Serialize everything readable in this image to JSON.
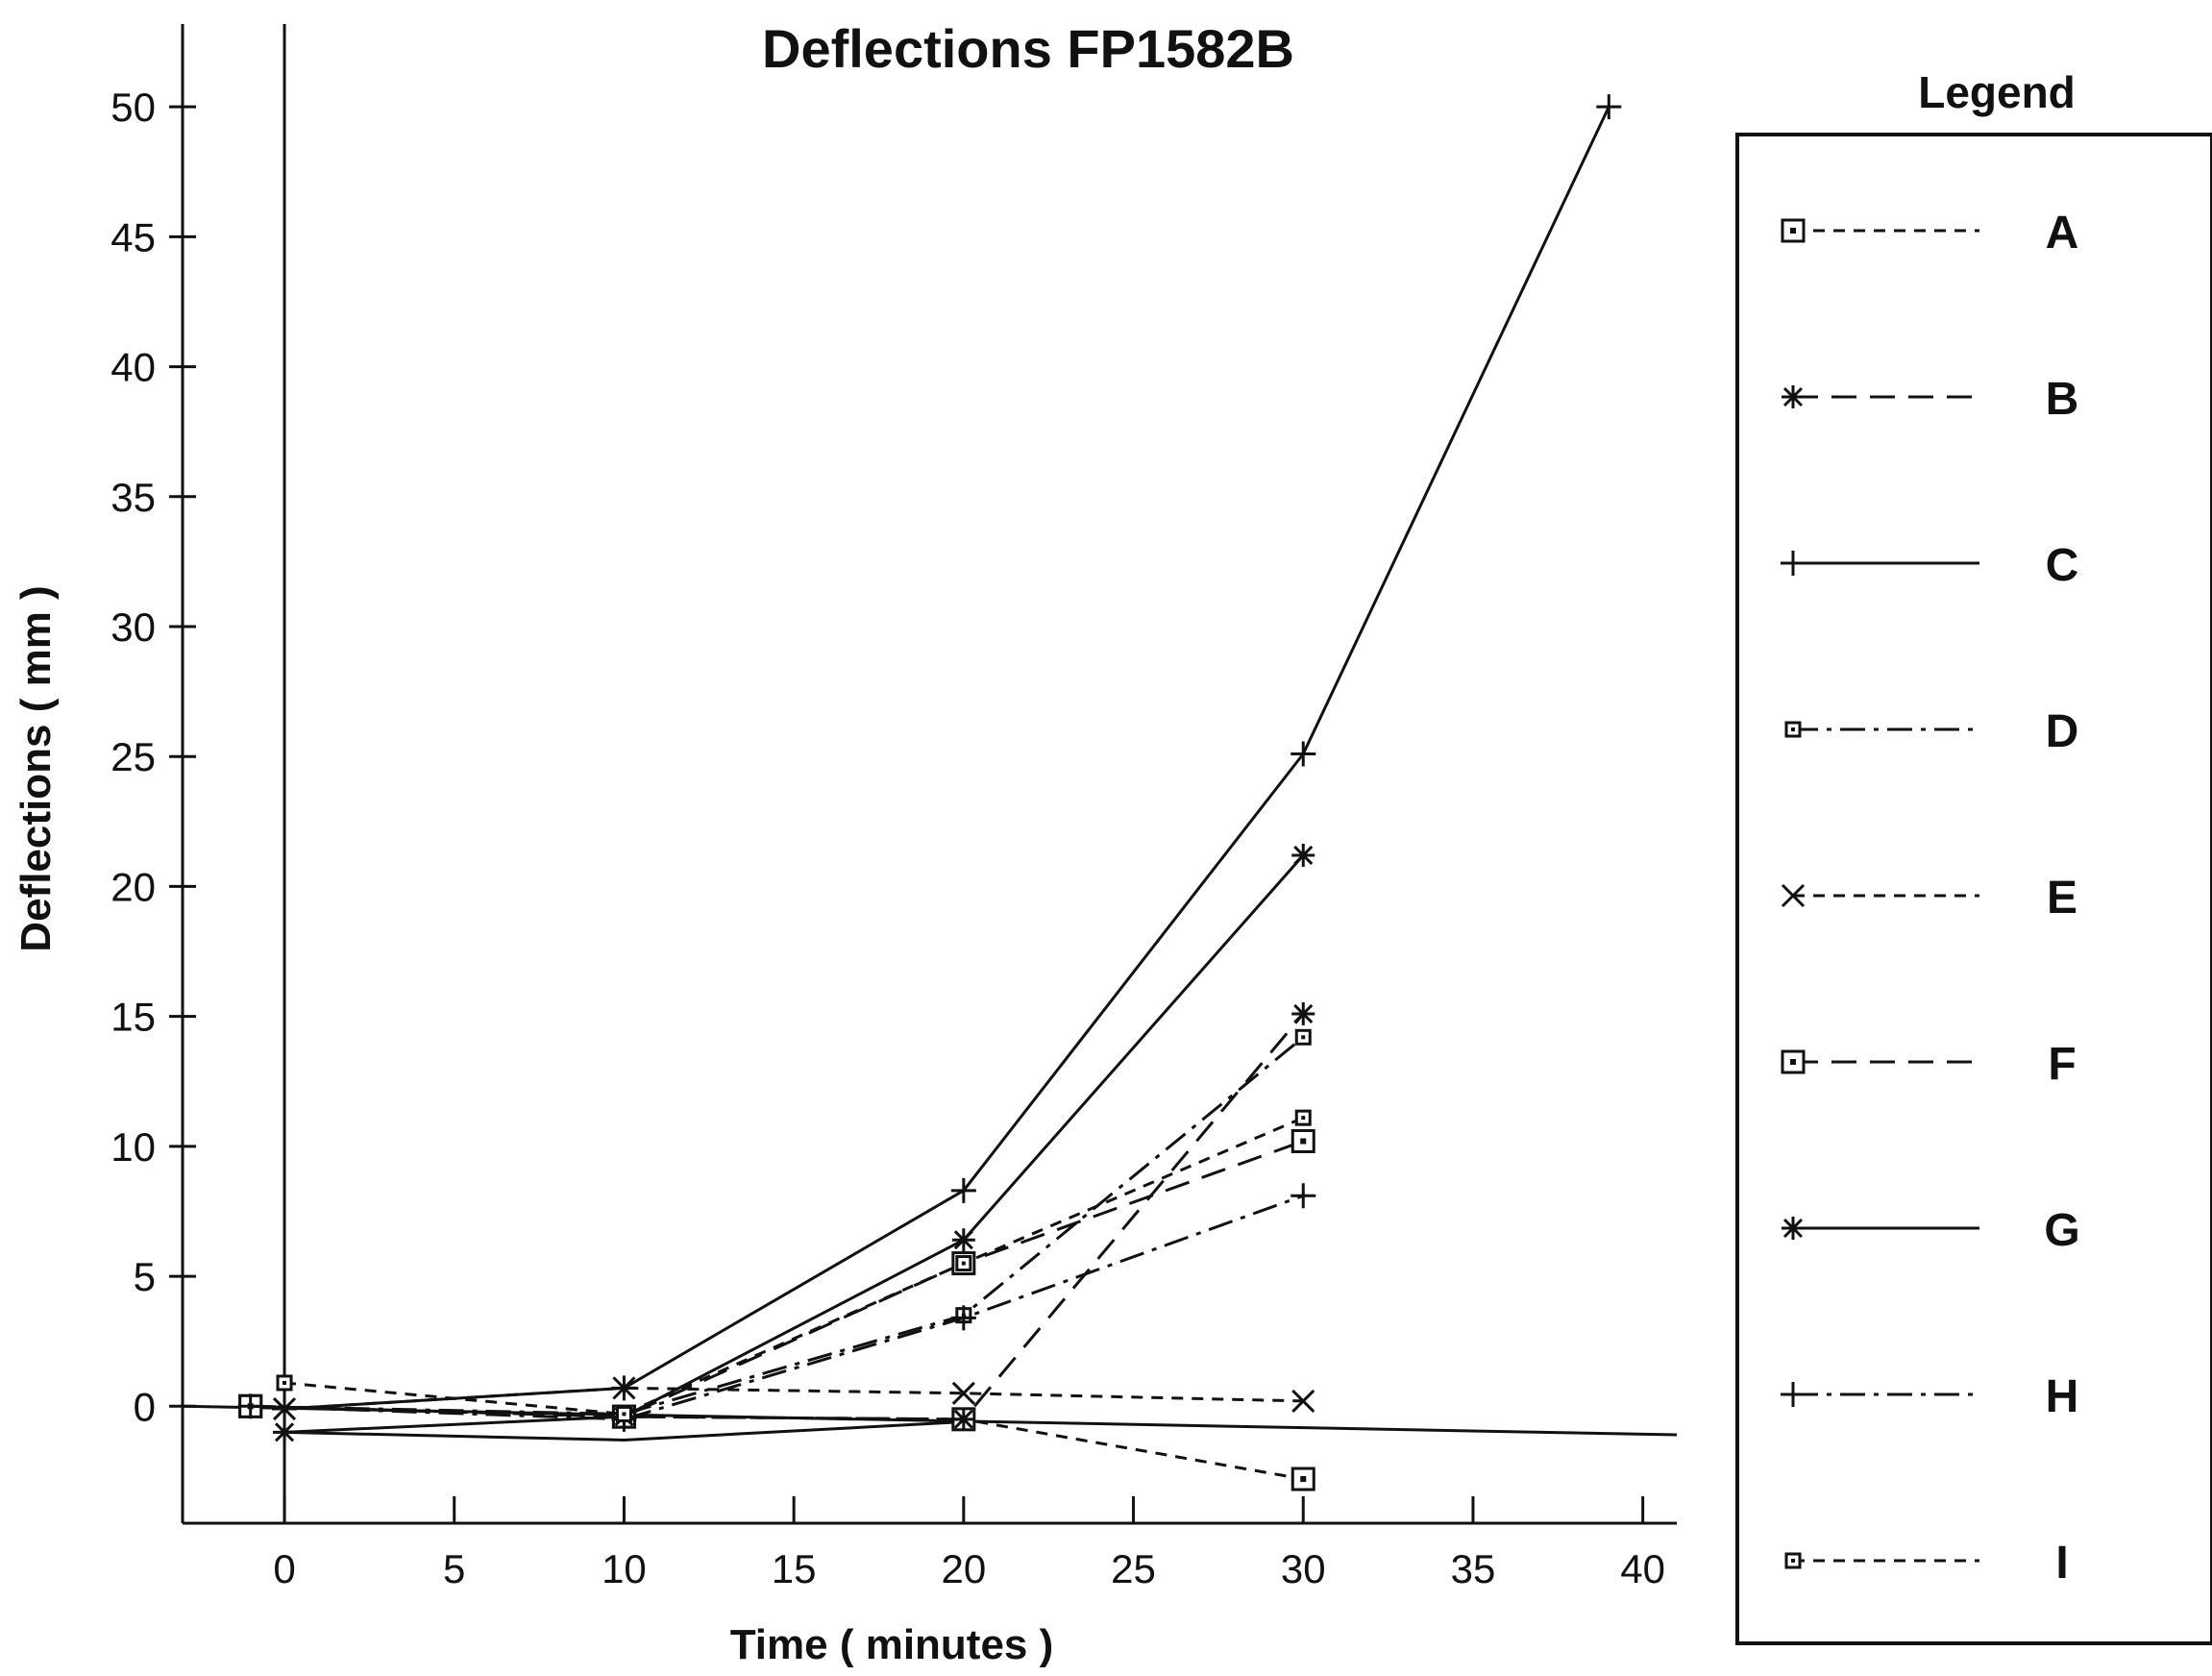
{
  "chart_data": {
    "type": "line",
    "title": "Deflections FP1582B",
    "xlabel": "Time ( minutes )",
    "ylabel": "Deflections ( mm )",
    "xlim": [
      -3,
      41
    ],
    "ylim": [
      -4.5,
      53
    ],
    "x_ticks": [
      0,
      5,
      10,
      15,
      20,
      25,
      30,
      35,
      40
    ],
    "y_ticks": [
      0,
      5,
      10,
      15,
      20,
      25,
      30,
      35,
      40,
      45,
      50
    ],
    "x_tick_labels": [
      "0",
      "5",
      "10",
      "15",
      "20",
      "25",
      "30",
      "35",
      "40"
    ],
    "y_tick_labels": [
      "0",
      "5",
      "10",
      "15",
      "20",
      "25",
      "30",
      "35",
      "40",
      "45",
      "50"
    ],
    "legend_title": "Legend",
    "legend_position": "right",
    "grid": false,
    "series": [
      {
        "name": "A",
        "marker": "square",
        "dash": "short",
        "points": [
          [
            -1,
            0
          ],
          [
            10,
            -0.4
          ],
          [
            20,
            -0.5
          ],
          [
            30,
            -2.8
          ]
        ]
      },
      {
        "name": "B",
        "marker": "asterisk",
        "dash": "long",
        "points": [
          [
            -1,
            0
          ],
          [
            10,
            -0.4
          ],
          [
            20,
            -0.5
          ],
          [
            30,
            15.1
          ]
        ]
      },
      {
        "name": "C",
        "marker": "plus",
        "dash": "solid",
        "points": [
          [
            0,
            -0.1
          ],
          [
            10,
            0.7
          ],
          [
            20,
            8.3
          ],
          [
            30,
            25.1
          ],
          [
            39,
            50
          ]
        ]
      },
      {
        "name": "D",
        "marker": "small-square",
        "dash": "dashdot",
        "points": [
          [
            -1,
            0
          ],
          [
            10,
            -0.3
          ],
          [
            20,
            3.5
          ],
          [
            30,
            14.2
          ]
        ]
      },
      {
        "name": "E",
        "marker": "x",
        "dash": "short",
        "points": [
          [
            0,
            -0.1
          ],
          [
            10,
            0.7
          ],
          [
            20,
            0.5
          ],
          [
            30,
            0.2
          ]
        ]
      },
      {
        "name": "F",
        "marker": "square",
        "dash": "long",
        "points": [
          [
            -1,
            0
          ],
          [
            10,
            -0.4
          ],
          [
            20,
            5.5
          ],
          [
            30,
            10.2
          ]
        ]
      },
      {
        "name": "G",
        "marker": "asterisk",
        "dash": "solid",
        "points": [
          [
            0,
            -1
          ],
          [
            10,
            -0.4
          ],
          [
            20,
            6.4
          ],
          [
            30,
            21.2
          ]
        ]
      },
      {
        "name": "H",
        "marker": "plus",
        "dash": "dashdot",
        "points": [
          [
            -1,
            0
          ],
          [
            10,
            -0.5
          ],
          [
            20,
            3.4
          ],
          [
            30,
            8.1
          ]
        ]
      },
      {
        "name": "I",
        "marker": "small-square",
        "dash": "short",
        "points": [
          [
            0,
            0.9
          ],
          [
            10,
            -0.3
          ],
          [
            20,
            5.5
          ],
          [
            30,
            11.1
          ]
        ]
      }
    ],
    "reference_lines": [
      {
        "points": [
          [
            -3,
            0
          ],
          [
            41,
            -1.1
          ]
        ]
      },
      {
        "points": [
          [
            0,
            -1
          ],
          [
            10,
            -1.3
          ],
          [
            20,
            -0.6
          ]
        ]
      }
    ]
  },
  "colors": {
    "ink": "#111111",
    "background": "#ffffff"
  }
}
